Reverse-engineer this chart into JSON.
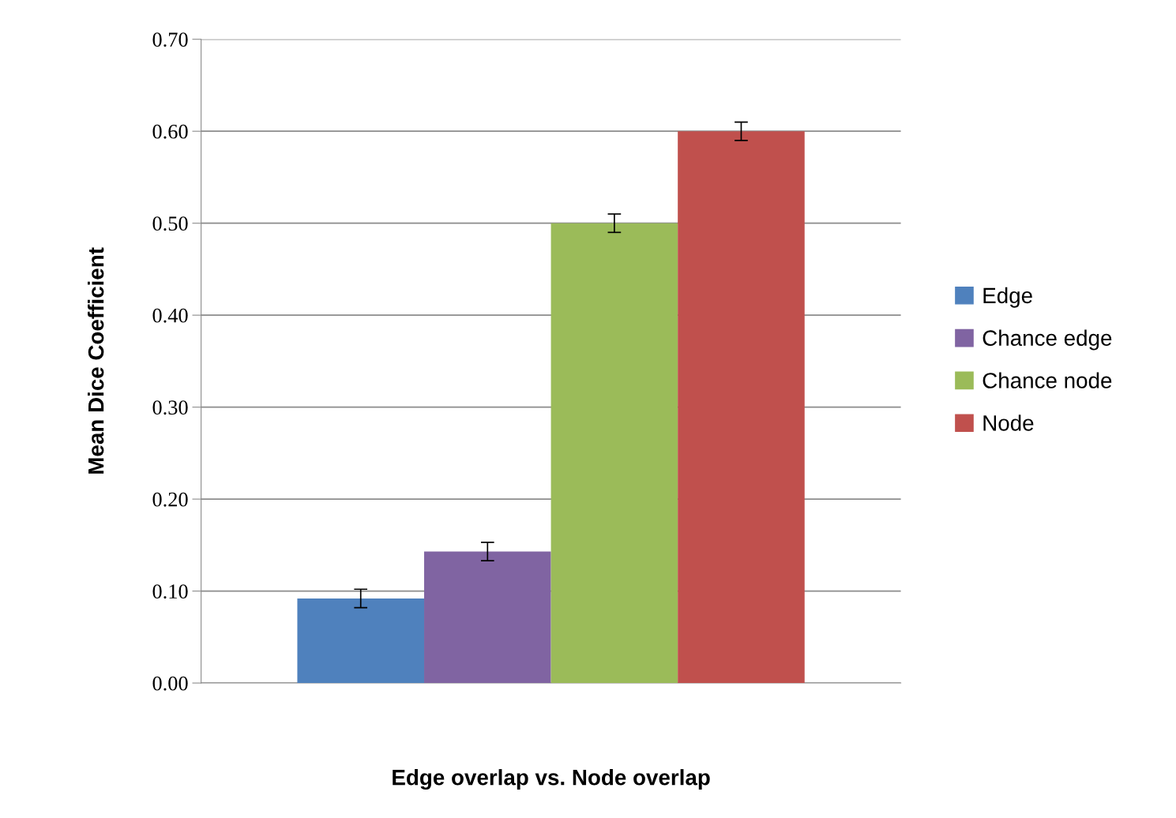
{
  "chart_data": {
    "type": "bar",
    "xlabel": "Edge overlap vs. Node overlap",
    "ylabel": "Mean Dice Coefficient",
    "categories": [
      null
    ],
    "series": [
      {
        "name": "Edge",
        "color": "#4f81bd",
        "values": [
          0.092
        ],
        "errors": [
          0.01
        ]
      },
      {
        "name": "Chance edge",
        "color": "#8064a2",
        "values": [
          0.143
        ],
        "errors": [
          0.01
        ]
      },
      {
        "name": "Chance node",
        "color": "#9bbb59",
        "values": [
          0.5
        ],
        "errors": [
          0.01
        ]
      },
      {
        "name": "Node",
        "color": "#c0504d",
        "values": [
          0.6
        ],
        "errors": [
          0.01
        ]
      }
    ],
    "ylim": [
      0,
      0.7
    ],
    "yticks": [
      {
        "value": 0,
        "label": "0.00"
      },
      {
        "value": 0.1,
        "label": "0.10"
      },
      {
        "value": 0.2,
        "label": "0.20"
      },
      {
        "value": 0.3,
        "label": "0.30"
      },
      {
        "value": 0.4,
        "label": "0.40"
      },
      {
        "value": 0.5,
        "label": "0.50"
      },
      {
        "value": 0.6,
        "label": "0.60"
      },
      {
        "value": 0.7,
        "label": "0.70"
      }
    ],
    "grid": "y",
    "legend": "right"
  }
}
